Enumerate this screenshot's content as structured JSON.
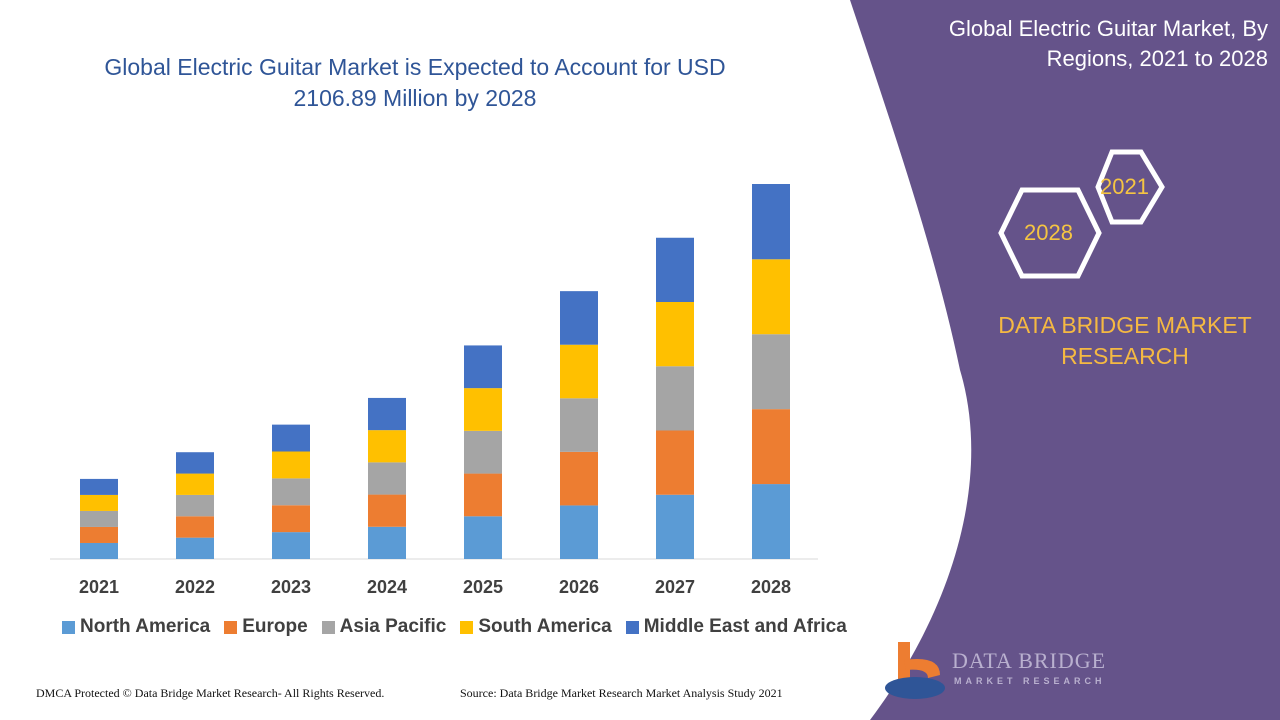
{
  "header": {
    "title": "Global Electric Guitar Market is Expected to Account for USD 2106.89 Million by 2028"
  },
  "side_panel": {
    "title": "Global Electric Guitar Market, By Regions, 2021 to 2028",
    "hex_years": [
      "2021",
      "2028"
    ],
    "brand": "DATA BRIDGE MARKET RESEARCH",
    "logo_text": "DATA BRIDGE",
    "logo_sub": "MARKET RESEARCH",
    "panel_color": "#65538a"
  },
  "footer": {
    "left": "DMCA Protected © Data Bridge Market Research- All Rights Reserved.",
    "right": "Source: Data Bridge Market Research Market Analysis Study 2021"
  },
  "chart_data": {
    "type": "bar",
    "stacked": true,
    "title": "Global Electric Guitar Market is Expected to Account for USD 2106.89 Million by 2028",
    "xlabel": "",
    "ylabel": "",
    "grid": false,
    "legend_position": "bottom",
    "categories": [
      "2021",
      "2022",
      "2023",
      "2024",
      "2025",
      "2026",
      "2027",
      "2028"
    ],
    "series": [
      {
        "name": "North America",
        "color": "#5b9bd5",
        "values": [
          90,
          120,
          151,
          181,
          240,
          301,
          361,
          421
        ]
      },
      {
        "name": "Europe",
        "color": "#ed7d31",
        "values": [
          90,
          120,
          151,
          181,
          240,
          301,
          361,
          421
        ]
      },
      {
        "name": "Asia Pacific",
        "color": "#a5a5a5",
        "values": [
          90,
          120,
          151,
          181,
          240,
          301,
          361,
          421
        ]
      },
      {
        "name": "South America",
        "color": "#ffc000",
        "values": [
          90,
          120,
          151,
          181,
          240,
          301,
          361,
          421
        ]
      },
      {
        "name": "Middle East and Africa",
        "color": "#4472c4",
        "values": [
          90,
          120,
          151,
          181,
          240,
          301,
          361,
          423
        ]
      }
    ]
  }
}
